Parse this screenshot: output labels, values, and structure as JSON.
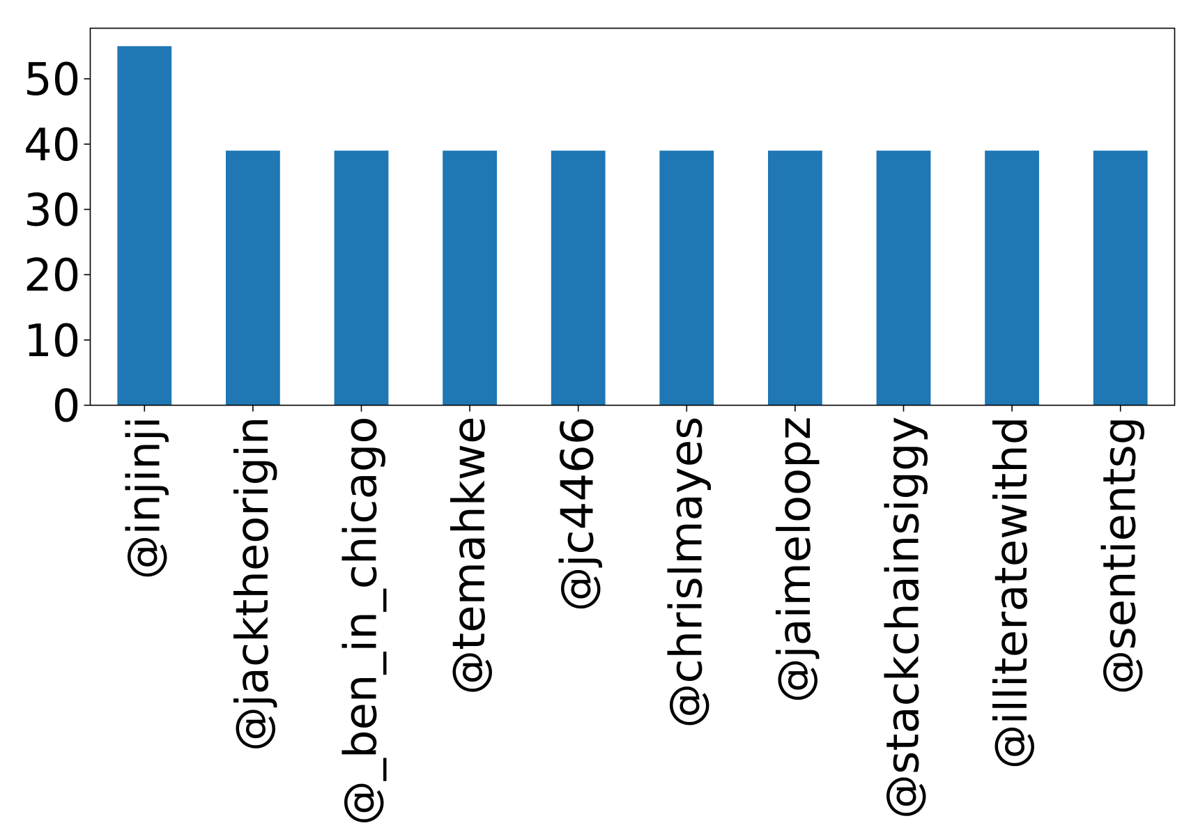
{
  "chart_data": {
    "type": "bar",
    "categories": [
      "@injinji",
      "@jacktheorigin",
      "@_ben_in_chicago",
      "@temahkwe",
      "@jc4466",
      "@chrislmayes",
      "@jaimeloopz",
      "@stackchainsiggy",
      "@illiteratewithd",
      "@sentientsg"
    ],
    "values": [
      55,
      39,
      39,
      39,
      39,
      39,
      39,
      39,
      39,
      39
    ],
    "yticks": [
      0,
      10,
      20,
      30,
      40,
      50
    ],
    "ylim": [
      0,
      57.75
    ],
    "title": "",
    "xlabel": "",
    "ylabel": "",
    "grid": false,
    "legend": "none",
    "bar_color": "#1f77b4"
  }
}
